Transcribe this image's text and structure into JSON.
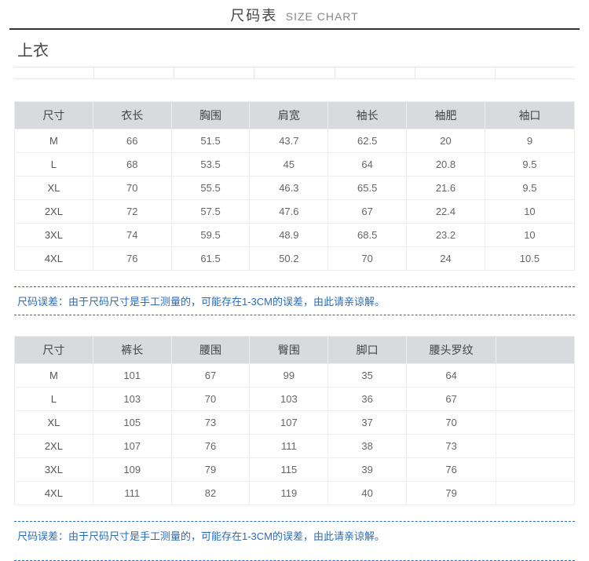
{
  "header": {
    "cn": "尺码表",
    "en": "SIZE CHART"
  },
  "section_top": "上衣",
  "table1": {
    "columns": [
      "尺寸",
      "衣长",
      "胸围",
      "肩宽",
      "袖长",
      "袖肥",
      "袖口"
    ],
    "col_widths": [
      "14%",
      "14%",
      "14%",
      "14%",
      "14%",
      "14%",
      "16%"
    ],
    "rows": [
      [
        "M",
        "66",
        "51.5",
        "43.7",
        "62.5",
        "20",
        "9"
      ],
      [
        "L",
        "68",
        "53.5",
        "45",
        "64",
        "20.8",
        "9.5"
      ],
      [
        "XL",
        "70",
        "55.5",
        "46.3",
        "65.5",
        "21.6",
        "9.5"
      ],
      [
        "2XL",
        "72",
        "57.5",
        "47.6",
        "67",
        "22.4",
        "10"
      ],
      [
        "3XL",
        "74",
        "59.5",
        "48.9",
        "68.5",
        "23.2",
        "10"
      ],
      [
        "4XL",
        "76",
        "61.5",
        "50.2",
        "70",
        "24",
        "10.5"
      ]
    ]
  },
  "note1": "尺码误差：由于尺码尺寸是手工测量的，可能存在1-3CM的误差，由此请亲谅解。",
  "table2": {
    "columns": [
      "尺寸",
      "裤长",
      "腰围",
      "臀围",
      "脚口",
      "腰头罗纹",
      ""
    ],
    "col_widths": [
      "14%",
      "14%",
      "14%",
      "14%",
      "14%",
      "16%",
      "14%"
    ],
    "rows": [
      [
        "M",
        "101",
        "67",
        "99",
        "35",
        "64",
        ""
      ],
      [
        "L",
        "103",
        "70",
        "103",
        "36",
        "67",
        ""
      ],
      [
        "XL",
        "105",
        "73",
        "107",
        "37",
        "70",
        ""
      ],
      [
        "2XL",
        "107",
        "76",
        "111",
        "38",
        "73",
        ""
      ],
      [
        "3XL",
        "109",
        "79",
        "115",
        "39",
        "76",
        ""
      ],
      [
        "4XL",
        "111",
        "82",
        "119",
        "40",
        "79",
        ""
      ]
    ]
  },
  "note2": "尺码误差：由于尺码尺寸是手工测量的，可能存在1-3CM的误差，由此请亲谅解。",
  "colors": {
    "accent": "#2b6cb5",
    "th_bg": "#d8dadd",
    "border": "#eeeeee",
    "text": "#555555"
  }
}
